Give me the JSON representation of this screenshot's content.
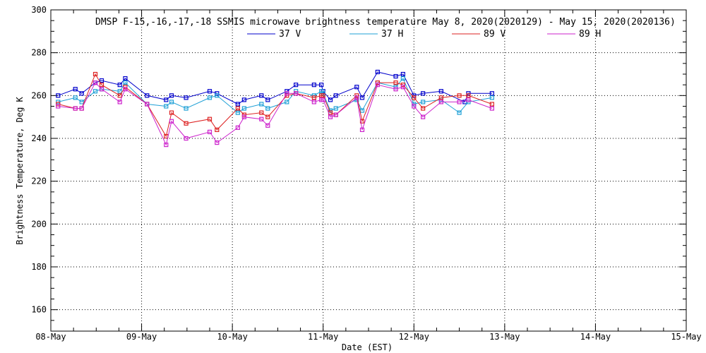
{
  "chart_data": {
    "type": "line",
    "title": "DMSP F-15,-16,-17,-18 SSMIS microwave brightness temperature May  8, 2020(2020129) - May 15, 2020(2020136)",
    "xlabel": "Date (EST)",
    "ylabel": "Brightness Temperature, Deg K",
    "ylim": [
      150,
      300
    ],
    "xlim": [
      0,
      7
    ],
    "y_ticks": [
      160,
      180,
      200,
      220,
      240,
      260,
      280,
      300
    ],
    "x_ticks": [
      {
        "value": 0,
        "label": "08-May"
      },
      {
        "value": 1,
        "label": "09-May"
      },
      {
        "value": 2,
        "label": "10-May"
      },
      {
        "value": 3,
        "label": "11-May"
      },
      {
        "value": 4,
        "label": "12-May"
      },
      {
        "value": 5,
        "label": "13-May"
      },
      {
        "value": 6,
        "label": "14-May"
      },
      {
        "value": 7,
        "label": "15-May"
      }
    ],
    "grid": true,
    "legend_position": "top-center",
    "series": [
      {
        "name": "37 V",
        "color": "#0000cc",
        "points": [
          [
            0.08,
            260
          ],
          [
            0.27,
            263
          ],
          [
            0.34,
            261
          ],
          [
            0.49,
            266
          ],
          [
            0.56,
            267
          ],
          [
            0.76,
            265
          ],
          [
            0.82,
            268
          ],
          [
            1.06,
            260
          ],
          [
            1.27,
            258
          ],
          [
            1.33,
            260
          ],
          [
            1.49,
            259
          ],
          [
            1.75,
            262
          ],
          [
            1.83,
            261
          ],
          [
            2.06,
            256
          ],
          [
            2.13,
            258
          ],
          [
            2.32,
            260
          ],
          [
            2.39,
            258
          ],
          [
            2.6,
            262
          ],
          [
            2.7,
            265
          ],
          [
            2.9,
            265
          ],
          [
            2.98,
            265
          ],
          [
            3.0,
            262
          ],
          [
            3.08,
            258
          ],
          [
            3.14,
            260
          ],
          [
            3.37,
            264
          ],
          [
            3.43,
            259
          ],
          [
            3.6,
            271
          ],
          [
            3.8,
            269
          ],
          [
            3.88,
            270
          ],
          [
            4.0,
            260
          ],
          [
            4.1,
            261
          ],
          [
            4.3,
            262
          ],
          [
            4.56,
            257
          ],
          [
            4.6,
            261
          ],
          [
            4.86,
            261
          ]
        ]
      },
      {
        "name": "37 H",
        "color": "#1fa0d6",
        "points": [
          [
            0.08,
            257
          ],
          [
            0.27,
            259
          ],
          [
            0.34,
            257
          ],
          [
            0.49,
            262
          ],
          [
            0.56,
            263
          ],
          [
            0.76,
            262
          ],
          [
            0.82,
            266
          ],
          [
            1.06,
            256
          ],
          [
            1.27,
            255
          ],
          [
            1.33,
            257
          ],
          [
            1.49,
            254
          ],
          [
            1.75,
            259
          ],
          [
            1.83,
            260
          ],
          [
            2.06,
            252
          ],
          [
            2.13,
            254
          ],
          [
            2.32,
            256
          ],
          [
            2.39,
            254
          ],
          [
            2.6,
            257
          ],
          [
            2.7,
            262
          ],
          [
            2.9,
            260
          ],
          [
            2.98,
            262
          ],
          [
            3.0,
            261
          ],
          [
            3.08,
            253
          ],
          [
            3.14,
            254
          ],
          [
            3.37,
            258
          ],
          [
            3.43,
            253
          ],
          [
            3.6,
            266
          ],
          [
            3.8,
            264
          ],
          [
            3.88,
            268
          ],
          [
            4.0,
            256
          ],
          [
            4.1,
            257
          ],
          [
            4.3,
            258
          ],
          [
            4.5,
            252
          ],
          [
            4.6,
            257
          ],
          [
            4.86,
            259
          ]
        ]
      },
      {
        "name": "89 V",
        "color": "#dd2222",
        "points": [
          [
            0.08,
            256
          ],
          [
            0.27,
            254
          ],
          [
            0.34,
            254
          ],
          [
            0.49,
            270
          ],
          [
            0.56,
            265
          ],
          [
            0.76,
            260
          ],
          [
            0.82,
            264
          ],
          [
            1.06,
            256
          ],
          [
            1.27,
            241
          ],
          [
            1.33,
            252
          ],
          [
            1.49,
            247
          ],
          [
            1.75,
            249
          ],
          [
            1.83,
            244
          ],
          [
            2.06,
            254
          ],
          [
            2.13,
            251
          ],
          [
            2.32,
            252
          ],
          [
            2.39,
            250
          ],
          [
            2.6,
            260
          ],
          [
            2.7,
            261
          ],
          [
            2.9,
            259
          ],
          [
            2.98,
            260
          ],
          [
            3.0,
            260
          ],
          [
            3.08,
            252
          ],
          [
            3.14,
            251
          ],
          [
            3.37,
            260
          ],
          [
            3.43,
            248
          ],
          [
            3.6,
            266
          ],
          [
            3.8,
            266
          ],
          [
            3.88,
            265
          ],
          [
            4.0,
            259
          ],
          [
            4.1,
            254
          ],
          [
            4.3,
            259
          ],
          [
            4.5,
            260
          ],
          [
            4.6,
            260
          ],
          [
            4.86,
            256
          ]
        ]
      },
      {
        "name": "89 H",
        "color": "#cc22cc",
        "points": [
          [
            0.08,
            255
          ],
          [
            0.27,
            254
          ],
          [
            0.34,
            254
          ],
          [
            0.49,
            266
          ],
          [
            0.56,
            263
          ],
          [
            0.76,
            257
          ],
          [
            0.82,
            263
          ],
          [
            1.06,
            256
          ],
          [
            1.27,
            237
          ],
          [
            1.33,
            248
          ],
          [
            1.49,
            240
          ],
          [
            1.75,
            243
          ],
          [
            1.83,
            238
          ],
          [
            2.06,
            245
          ],
          [
            2.13,
            250
          ],
          [
            2.32,
            249
          ],
          [
            2.39,
            246
          ],
          [
            2.6,
            261
          ],
          [
            2.7,
            261
          ],
          [
            2.9,
            257
          ],
          [
            2.98,
            258
          ],
          [
            3.0,
            258
          ],
          [
            3.08,
            250
          ],
          [
            3.14,
            251
          ],
          [
            3.37,
            259
          ],
          [
            3.43,
            244
          ],
          [
            3.6,
            265
          ],
          [
            3.8,
            263
          ],
          [
            3.88,
            264
          ],
          [
            4.0,
            255
          ],
          [
            4.1,
            250
          ],
          [
            4.3,
            257
          ],
          [
            4.5,
            257
          ],
          [
            4.6,
            258
          ],
          [
            4.86,
            254
          ]
        ]
      }
    ]
  }
}
